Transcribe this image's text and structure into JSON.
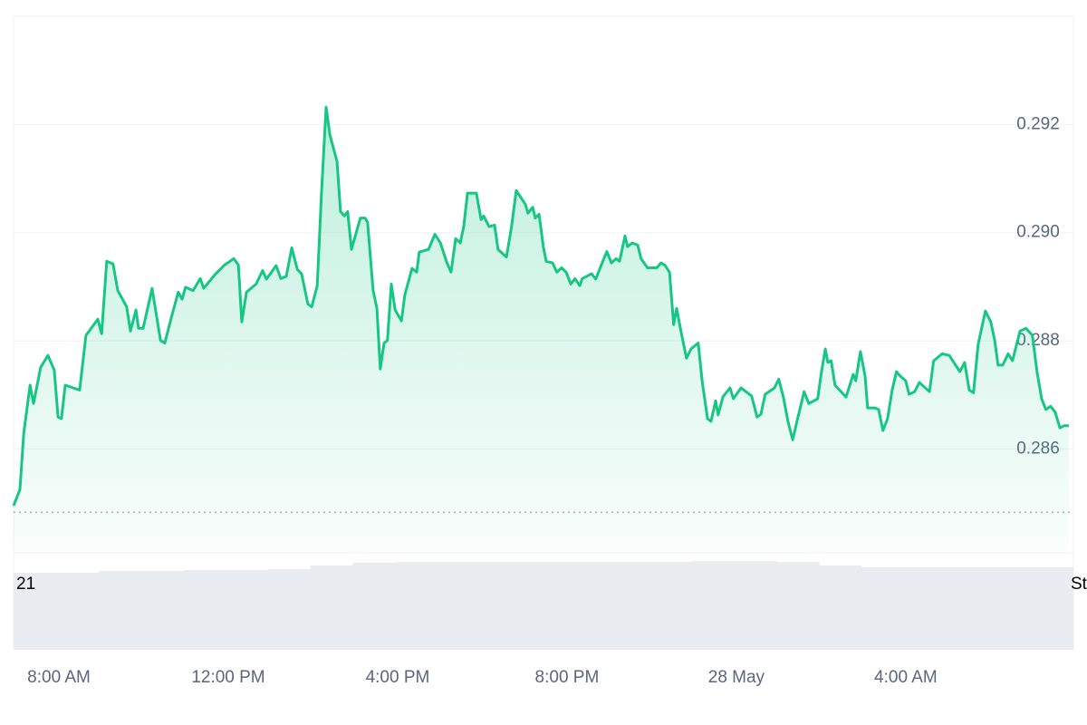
{
  "chart_data": {
    "type": "line",
    "x": [
      6.93,
      7.08,
      7.17,
      7.32,
      7.4,
      7.57,
      7.74,
      7.89,
      7.98,
      8.06,
      8.15,
      8.49,
      8.64,
      8.92,
      9.01,
      9.13,
      9.28,
      9.39,
      9.6,
      9.69,
      9.82,
      9.88,
      9.99,
      10.2,
      10.4,
      10.5,
      10.67,
      10.82,
      10.91,
      10.99,
      11.17,
      11.34,
      11.42,
      11.68,
      11.91,
      12.13,
      12.24,
      12.32,
      12.43,
      12.66,
      12.81,
      12.9,
      13.13,
      13.24,
      13.37,
      13.5,
      13.63,
      13.73,
      13.88,
      13.97,
      14.1,
      14.2,
      14.31,
      14.4,
      14.57,
      14.65,
      14.74,
      14.82,
      14.91,
      15.12,
      15.23,
      15.29,
      15.42,
      15.51,
      15.59,
      15.68,
      15.76,
      15.85,
      15.94,
      16.09,
      16.17,
      16.34,
      16.45,
      16.51,
      16.73,
      16.88,
      17.01,
      17.16,
      17.26,
      17.37,
      17.48,
      17.56,
      17.65,
      17.86,
      17.97,
      18.03,
      18.16,
      18.29,
      18.37,
      18.57,
      18.69,
      18.8,
      19.02,
      19.08,
      19.19,
      19.25,
      19.34,
      19.44,
      19.51,
      19.66,
      19.76,
      19.87,
      19.98,
      20.09,
      20.19,
      20.3,
      20.36,
      20.58,
      20.68,
      20.83,
      20.94,
      21.05,
      21.16,
      21.24,
      21.37,
      21.43,
      21.54,
      21.67,
      21.75,
      21.9,
      22.12,
      22.22,
      22.31,
      22.42,
      22.52,
      22.59,
      22.69,
      22.82,
      22.93,
      23.1,
      23.19,
      23.32,
      23.4,
      23.51,
      23.57,
      23.68,
      23.85,
      23.93,
      24.11,
      24.36,
      24.49,
      24.58,
      24.68,
      24.9,
      25.0,
      25.11,
      25.22,
      25.33,
      25.43,
      25.6,
      25.71,
      25.92,
      26.01,
      26.1,
      26.16,
      26.24,
      26.33,
      26.59,
      26.76,
      26.82,
      26.93,
      27.04,
      27.1,
      27.27,
      27.36,
      27.46,
      27.57,
      27.68,
      27.78,
      27.87,
      28.0,
      28.08,
      28.21,
      28.32,
      28.56,
      28.66,
      28.86,
      29.03,
      29.11,
      29.28,
      29.39,
      29.5,
      29.6,
      29.71,
      29.88,
      30.01,
      30.1,
      30.18,
      30.29,
      30.42,
      30.52,
      30.7,
      30.84,
      30.99,
      31.1,
      31.21,
      31.31,
      31.42,
      31.53,
      31.64,
      31.74,
      31.85
    ],
    "series": [
      {
        "color": "#16c784",
        "values": [
          0.28495,
          0.28525,
          0.28629,
          0.28718,
          0.28684,
          0.28751,
          0.28773,
          0.28746,
          0.28659,
          0.28656,
          0.28718,
          0.28709,
          0.2881,
          0.2884,
          0.28813,
          0.28947,
          0.28942,
          0.28893,
          0.28863,
          0.28818,
          0.28857,
          0.28823,
          0.28823,
          0.28897,
          0.28801,
          0.28796,
          0.28847,
          0.2889,
          0.28877,
          0.28899,
          0.28893,
          0.28915,
          0.28897,
          0.28922,
          0.2894,
          0.28952,
          0.2894,
          0.28835,
          0.2889,
          0.28905,
          0.2893,
          0.28914,
          0.28939,
          0.28915,
          0.28919,
          0.28972,
          0.28932,
          0.28924,
          0.28868,
          0.28863,
          0.28902,
          0.29069,
          0.29232,
          0.29181,
          0.29131,
          0.29039,
          0.29031,
          0.29039,
          0.28969,
          0.29027,
          0.29027,
          0.29019,
          0.28893,
          0.2886,
          0.28748,
          0.28796,
          0.28801,
          0.28905,
          0.28857,
          0.28837,
          0.28885,
          0.28934,
          0.28927,
          0.28964,
          0.28969,
          0.28997,
          0.28981,
          0.28945,
          0.28927,
          0.28989,
          0.28981,
          0.29011,
          0.29073,
          0.29073,
          0.29024,
          0.29031,
          0.29011,
          0.29014,
          0.28969,
          0.28955,
          0.29011,
          0.29078,
          0.29052,
          0.29036,
          0.29047,
          0.29027,
          0.29034,
          0.28974,
          0.28947,
          0.28944,
          0.28927,
          0.28935,
          0.28927,
          0.28905,
          0.28915,
          0.28902,
          0.28915,
          0.28924,
          0.28914,
          0.28944,
          0.28965,
          0.28944,
          0.28952,
          0.28947,
          0.28994,
          0.28974,
          0.28981,
          0.28977,
          0.28952,
          0.28935,
          0.28935,
          0.28944,
          0.2894,
          0.28927,
          0.2883,
          0.2886,
          0.28818,
          0.28768,
          0.28785,
          0.28796,
          0.28726,
          0.28656,
          0.28651,
          0.28689,
          0.28663,
          0.28696,
          0.28713,
          0.28693,
          0.28713,
          0.28698,
          0.28659,
          0.28664,
          0.28701,
          0.28713,
          0.28729,
          0.28696,
          0.28651,
          0.28617,
          0.28651,
          0.28706,
          0.28684,
          0.28693,
          0.28743,
          0.28785,
          0.2876,
          0.28763,
          0.28718,
          0.28696,
          0.28738,
          0.28726,
          0.2878,
          0.28735,
          0.28676,
          0.28676,
          0.28673,
          0.28634,
          0.28656,
          0.28709,
          0.28743,
          0.28735,
          0.28726,
          0.28701,
          0.28706,
          0.28723,
          0.28706,
          0.28763,
          0.28776,
          0.28773,
          0.28763,
          0.28743,
          0.2876,
          0.28709,
          0.28704,
          0.28793,
          0.28855,
          0.28835,
          0.28801,
          0.28755,
          0.28755,
          0.28776,
          0.28763,
          0.28818,
          0.28823,
          0.2881,
          0.28743,
          0.28693,
          0.28673,
          0.28679,
          0.28668,
          0.28639,
          0.28643,
          0.28643
        ]
      }
    ],
    "xlim": [
      6.93,
      31.96
    ],
    "ylim": [
      0.28408,
      0.294
    ],
    "yticks": [
      0.286,
      0.288,
      {
        "value": 0.29,
        "label": "0.290"
      },
      0.292
    ],
    "xticks": [
      {
        "value": 8,
        "label": "8:00 AM"
      },
      {
        "value": 12,
        "label": "12:00 PM"
      },
      {
        "value": 16,
        "label": "4:00 PM"
      },
      {
        "value": 20,
        "label": "8:00 PM"
      },
      {
        "value": 24,
        "label": "28 May"
      },
      {
        "value": 28,
        "label": "4:00 AM"
      }
    ],
    "grid": true,
    "reference_value": 0.28483,
    "edge_labels": [
      "21",
      "St"
    ],
    "volume": {
      "color": "#e9ecf0",
      "ylim": [
        0,
        100
      ],
      "values": [
        85,
        85,
        87,
        87,
        88,
        88,
        89,
        93,
        96,
        97,
        97,
        97,
        97,
        97,
        97,
        97,
        98,
        98,
        97,
        93,
        91,
        91,
        91,
        91,
        91
      ]
    }
  }
}
